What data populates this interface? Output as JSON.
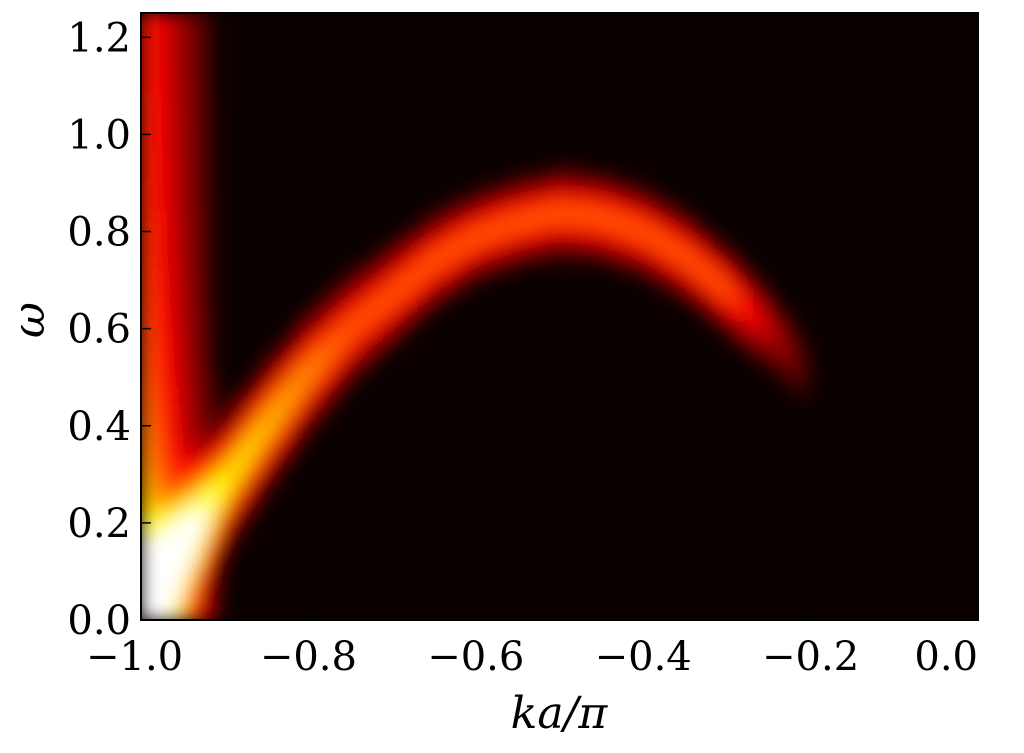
{
  "chart_data": {
    "type": "heatmap",
    "title": "",
    "xlabel": "ka/π",
    "ylabel": "ω",
    "xlim": [
      -1.0,
      0.0
    ],
    "ylim": [
      0.0,
      1.25
    ],
    "x_ticks": [
      -1.0,
      -0.8,
      -0.6,
      -0.4,
      -0.2,
      0.0
    ],
    "x_tick_labels": [
      "−1.0",
      "−0.8",
      "−0.6",
      "−0.4",
      "−0.2",
      "0.0"
    ],
    "y_ticks": [
      0.0,
      0.2,
      0.4,
      0.6,
      0.8,
      1.0,
      1.2
    ],
    "y_tick_labels": [
      "0.0",
      "0.2",
      "0.4",
      "0.6",
      "0.8",
      "1.0",
      "1.2"
    ],
    "colormap": "hot",
    "background_color": "#0a0000",
    "grid": false,
    "legend": "none",
    "features": [
      {
        "name": "",
        "description": "arched dispersion band",
        "peak_intensity": 0.9,
        "ridge": {
          "k": [
            -1.0,
            -0.97,
            -0.93,
            -0.9,
            -0.85,
            -0.8,
            -0.75,
            -0.7,
            -0.65,
            -0.6,
            -0.55,
            -0.5,
            -0.45,
            -0.4,
            -0.35,
            -0.3,
            -0.25,
            -0.2
          ],
          "omega": [
            0.02,
            0.1,
            0.2,
            0.28,
            0.4,
            0.51,
            0.6,
            0.67,
            0.74,
            0.79,
            0.82,
            0.84,
            0.83,
            0.8,
            0.75,
            0.68,
            0.6,
            0.5
          ]
        }
      },
      {
        "name": "",
        "description": "vertical continuum near zone edge",
        "k_range": [
          -1.0,
          -0.9
        ],
        "omega_range": [
          0.0,
          1.25
        ],
        "peak_intensity": 1.0
      }
    ]
  }
}
